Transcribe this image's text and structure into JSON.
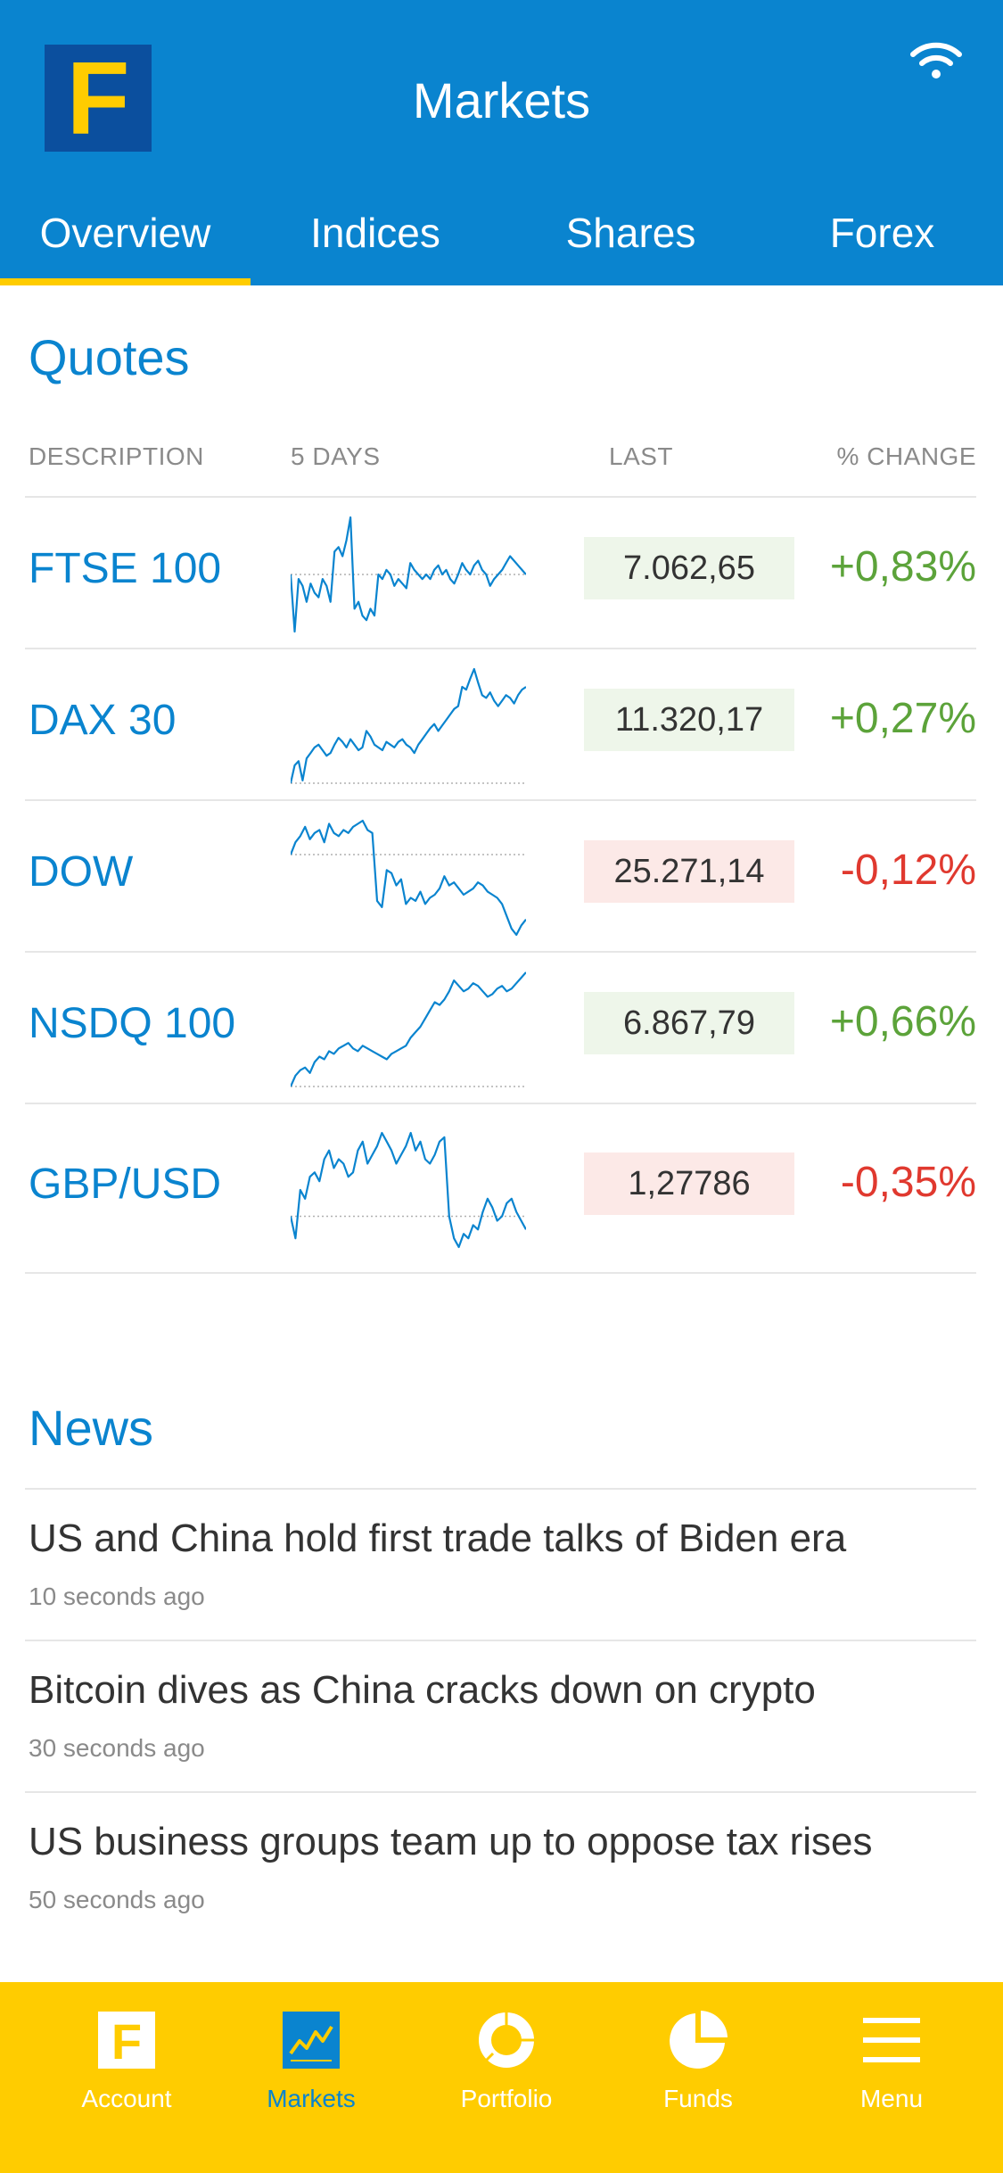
{
  "header": {
    "logo_letter": "F",
    "title": "Markets",
    "tabs": [
      {
        "label": "Overview",
        "active": true
      },
      {
        "label": "Indices",
        "active": false
      },
      {
        "label": "Shares",
        "active": false
      },
      {
        "label": "Forex",
        "active": false
      }
    ]
  },
  "quotes": {
    "title": "Quotes",
    "columns": {
      "description": "DESCRIPTION",
      "days": "5 DAYS",
      "last": "LAST",
      "change": "% CHANGE"
    },
    "rows": [
      {
        "name": "FTSE 100",
        "last": "7.062,65",
        "change": "+0,83%",
        "direction": "up",
        "sparkline": [
          60,
          35,
          58,
          55,
          48,
          56,
          52,
          50,
          58,
          55,
          48,
          70,
          72,
          68,
          75,
          85,
          45,
          48,
          42,
          40,
          45,
          42,
          60,
          58,
          62,
          60,
          55,
          58,
          56,
          54,
          65,
          62,
          60,
          58,
          60,
          58,
          62,
          64,
          60,
          62,
          58,
          56,
          60,
          65,
          62,
          60,
          64,
          66,
          62,
          60,
          55,
          58,
          60,
          62,
          65,
          68,
          66,
          64,
          62,
          60
        ]
      },
      {
        "name": "DAX 30",
        "last": "11.320,17",
        "change": "+0,27%",
        "direction": "up",
        "sparkline": [
          2,
          15,
          18,
          4,
          20,
          24,
          28,
          30,
          26,
          22,
          24,
          30,
          35,
          32,
          28,
          34,
          30,
          26,
          28,
          40,
          36,
          30,
          28,
          26,
          32,
          30,
          28,
          32,
          34,
          30,
          28,
          24,
          30,
          34,
          38,
          42,
          45,
          40,
          44,
          48,
          52,
          56,
          58,
          72,
          70,
          78,
          85,
          75,
          66,
          64,
          68,
          62,
          58,
          62,
          66,
          64,
          60,
          66,
          70,
          72
        ]
      },
      {
        "name": "DOW",
        "last": "25.271,14",
        "change": "-0,12%",
        "direction": "down",
        "sparkline": [
          70,
          78,
          82,
          88,
          80,
          84,
          86,
          78,
          90,
          84,
          82,
          86,
          84,
          88,
          90,
          92,
          86,
          84,
          40,
          36,
          60,
          58,
          50,
          54,
          38,
          42,
          40,
          46,
          38,
          42,
          44,
          48,
          56,
          50,
          52,
          48,
          44,
          46,
          48,
          52,
          50,
          46,
          44,
          42,
          38,
          30,
          22,
          18,
          24,
          28
        ]
      },
      {
        "name": "NSDQ 100",
        "last": "6.867,79",
        "change": "+0,66%",
        "direction": "up",
        "sparkline": [
          0,
          8,
          12,
          14,
          10,
          18,
          22,
          20,
          26,
          24,
          28,
          30,
          32,
          28,
          26,
          30,
          28,
          26,
          24,
          22,
          20,
          24,
          26,
          28,
          30,
          36,
          40,
          44,
          50,
          56,
          62,
          60,
          64,
          70,
          78,
          74,
          70,
          72,
          76,
          74,
          70,
          66,
          68,
          72,
          74,
          70,
          72,
          76,
          80,
          84
        ]
      },
      {
        "name": "GBP/USD",
        "last": "1,27786",
        "change": "-0,35%",
        "direction": "down",
        "sparkline": [
          40,
          30,
          52,
          48,
          58,
          60,
          56,
          66,
          70,
          62,
          66,
          64,
          58,
          60,
          70,
          74,
          64,
          68,
          72,
          78,
          74,
          70,
          64,
          68,
          72,
          78,
          70,
          74,
          66,
          64,
          68,
          74,
          76,
          40,
          30,
          26,
          32,
          30,
          36,
          34,
          42,
          48,
          44,
          38,
          40,
          46,
          48,
          42,
          38,
          34
        ]
      }
    ]
  },
  "news": {
    "title": "News",
    "items": [
      {
        "headline": "US and China hold first trade talks of Biden era",
        "time": "10 seconds ago"
      },
      {
        "headline": "Bitcoin dives as China cracks down on crypto",
        "time": "30 seconds ago"
      },
      {
        "headline": "US business groups team up to oppose tax rises",
        "time": "50 seconds ago"
      }
    ]
  },
  "bottom_nav": [
    {
      "label": "Account",
      "icon": "account-logo-icon",
      "active": false
    },
    {
      "label": "Markets",
      "icon": "markets-chart-icon",
      "active": true
    },
    {
      "label": "Portfolio",
      "icon": "donut-icon",
      "active": false
    },
    {
      "label": "Funds",
      "icon": "pie-chart-icon",
      "active": false
    },
    {
      "label": "Menu",
      "icon": "hamburger-icon",
      "active": false
    }
  ],
  "colors": {
    "primary_blue": "#0a84cf",
    "accent_yellow": "#ffcc00",
    "up_green": "#5ca33a",
    "down_red": "#e0392f"
  }
}
